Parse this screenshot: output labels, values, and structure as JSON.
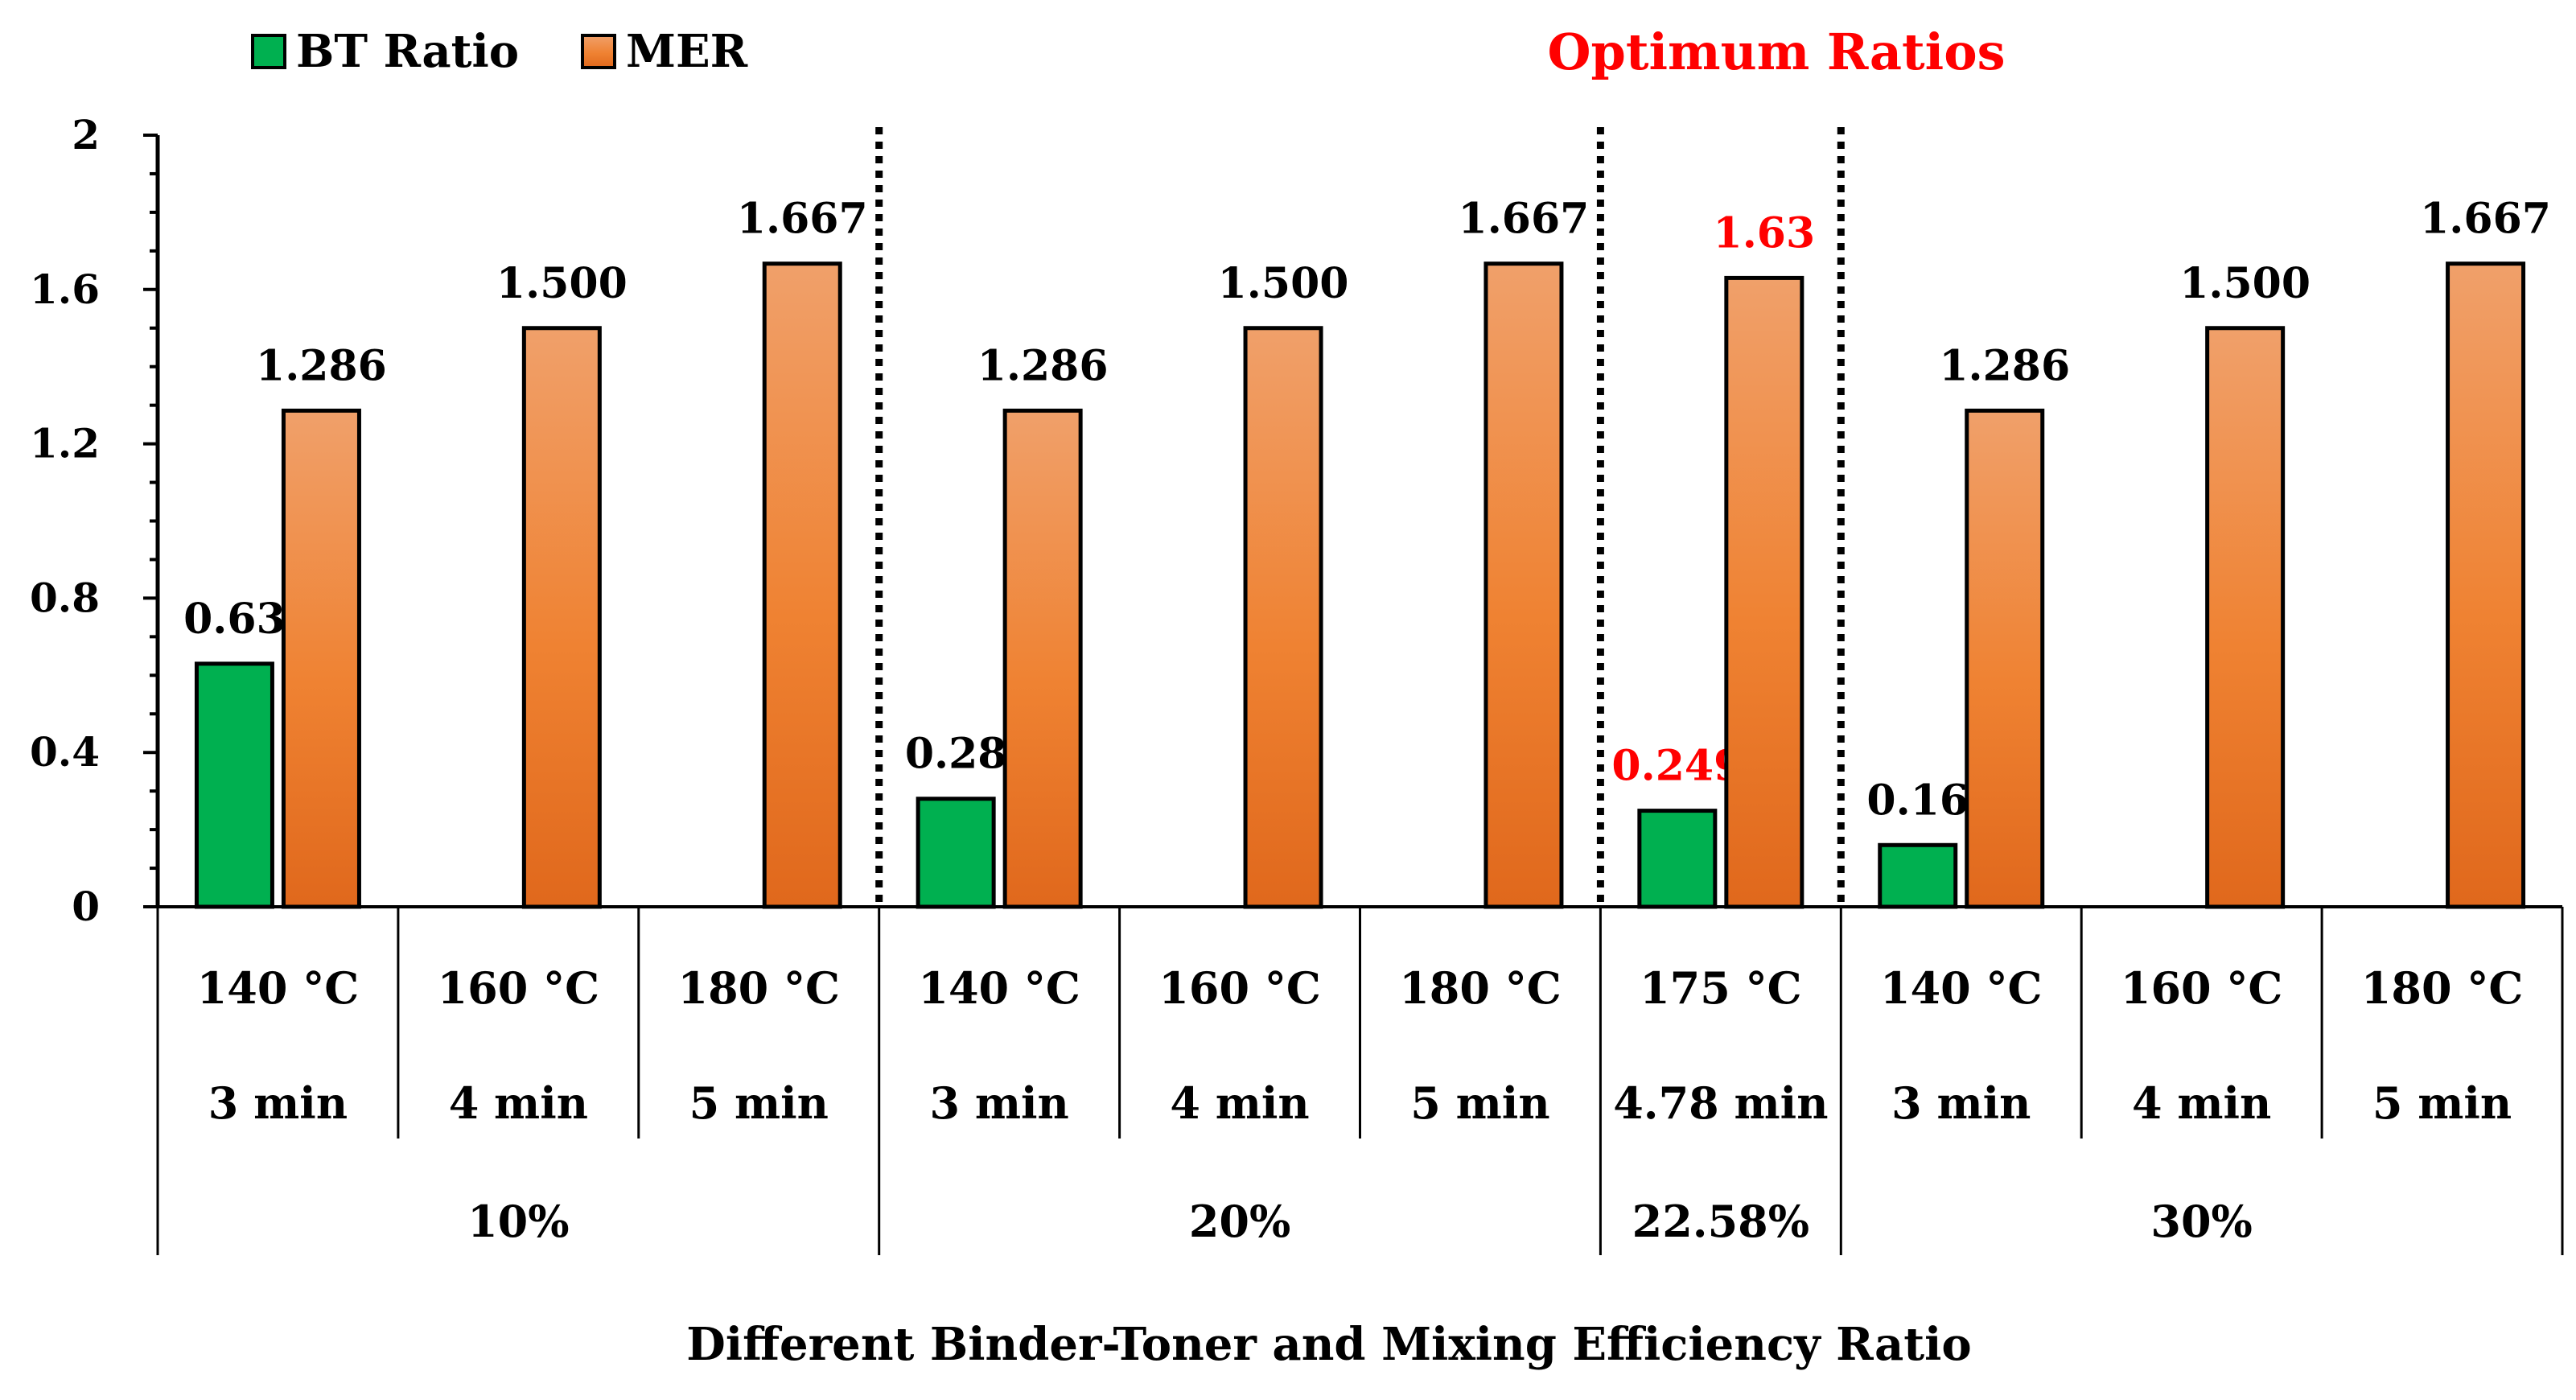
{
  "chart_data": {
    "type": "bar",
    "title": "",
    "highlight_title": "Optimum Ratios",
    "xlabel": "Different Binder-Toner and Mixing Efficiency Ratio",
    "ylabel": "",
    "ylim": [
      0,
      2
    ],
    "yticks": [
      "0",
      "0.4",
      "0.8",
      "1.2",
      "1.6",
      "2"
    ],
    "ytick_values": [
      0,
      0.4,
      0.8,
      1.2,
      1.6,
      2
    ],
    "legend_position": "top-left",
    "categories": [
      {
        "temp": "140 °C",
        "time": "3 min"
      },
      {
        "temp": "160 °C",
        "time": "4 min"
      },
      {
        "temp": "180 °C",
        "time": "5 min"
      },
      {
        "temp": "140 °C",
        "time": "3 min"
      },
      {
        "temp": "160 °C",
        "time": "4 min"
      },
      {
        "temp": "180 °C",
        "time": "5 min"
      },
      {
        "temp": "175 °C",
        "time": "4.78 min"
      },
      {
        "temp": "140 °C",
        "time": "3 min"
      },
      {
        "temp": "160 °C",
        "time": "4 min"
      },
      {
        "temp": "180 °C",
        "time": "5 min"
      }
    ],
    "groups": [
      {
        "label": "10%",
        "start": 0,
        "end": 2
      },
      {
        "label": "20%",
        "start": 3,
        "end": 5
      },
      {
        "label": "22.58%",
        "start": 6,
        "end": 6
      },
      {
        "label": "30%",
        "start": 7,
        "end": 9
      }
    ],
    "dotted_separators_after": [
      2,
      5,
      6
    ],
    "highlight_index": 6,
    "highlight_color": "#ff0000",
    "series": [
      {
        "name": "BT Ratio",
        "color": "#00b050",
        "values": [
          0.63,
          null,
          null,
          0.28,
          null,
          null,
          0.249,
          0.16,
          null,
          null
        ],
        "labels": [
          "0.63",
          null,
          null,
          "0.28",
          null,
          null,
          "0.249",
          "0.16",
          null,
          null
        ]
      },
      {
        "name": "MER",
        "color_top": "#f0a06a",
        "color_bottom": "#e0681c",
        "color": "#ed7d31",
        "values": [
          1.286,
          1.5,
          1.667,
          1.286,
          1.5,
          1.667,
          1.63,
          1.286,
          1.5,
          1.667
        ],
        "labels": [
          "1.286",
          "1.500",
          "1.667",
          "1.286",
          "1.500",
          "1.667",
          "1.63",
          "1.286",
          "1.500",
          "1.667"
        ]
      }
    ]
  }
}
